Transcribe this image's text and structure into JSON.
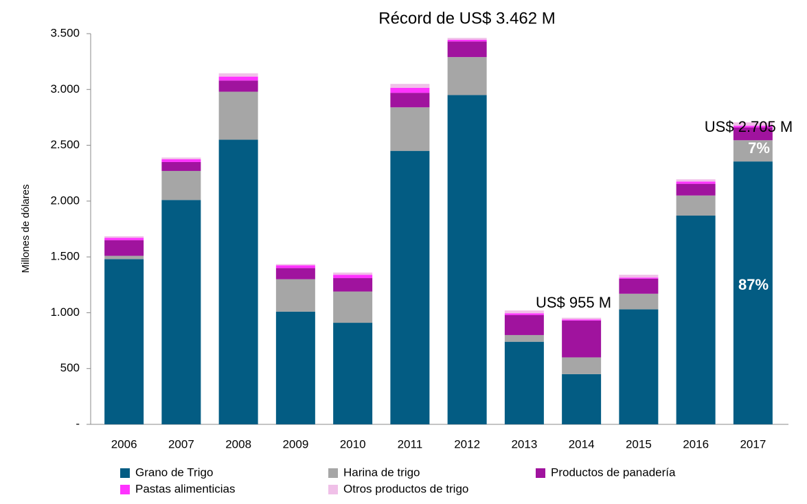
{
  "chart_data": {
    "type": "stacked_bar",
    "ylabel": "Millones de dólares",
    "categories": [
      "2006",
      "2007",
      "2008",
      "2009",
      "2010",
      "2011",
      "2012",
      "2013",
      "2014",
      "2015",
      "2016",
      "2017"
    ],
    "series": [
      {
        "name": "Grano de Trigo",
        "color": "#035c83",
        "values": [
          1480,
          2010,
          2550,
          1010,
          910,
          2450,
          2950,
          740,
          450,
          1030,
          1870,
          2355
        ]
      },
      {
        "name": "Harina de trigo",
        "color": "#a6a6a6",
        "values": [
          30,
          260,
          430,
          290,
          280,
          390,
          340,
          60,
          150,
          140,
          180,
          190
        ]
      },
      {
        "name": "Productos de panadería",
        "color": "#a0139e",
        "values": [
          140,
          80,
          100,
          100,
          120,
          130,
          140,
          180,
          330,
          135,
          105,
          115
        ]
      },
      {
        "name": "Pastas alimenticias",
        "color": "#ff33ff",
        "values": [
          20,
          25,
          35,
          25,
          30,
          45,
          15,
          15,
          10,
          10,
          20,
          15
        ]
      },
      {
        "name": "Otros productos de trigo",
        "color": "#f0c0e8",
        "values": [
          15,
          15,
          30,
          10,
          20,
          35,
          17,
          25,
          15,
          25,
          20,
          30
        ]
      }
    ],
    "ylim": [
      0,
      3500
    ],
    "yticks": [
      {
        "value": 0,
        "label": "-"
      },
      500,
      {
        "value": 1000,
        "label": "1.000"
      },
      {
        "value": 1500,
        "label": "1.500"
      },
      {
        "value": 2000,
        "label": "2.000"
      },
      {
        "value": 2500,
        "label": "2.500"
      },
      {
        "value": 3000,
        "label": "3.000"
      },
      {
        "value": 3500,
        "label": "3.500"
      }
    ],
    "annotations": [
      "Récord de US$ 3.462 M",
      "US$ 955 M",
      "US$ 2.705 M",
      "7%",
      "87%"
    ],
    "grid": false
  }
}
